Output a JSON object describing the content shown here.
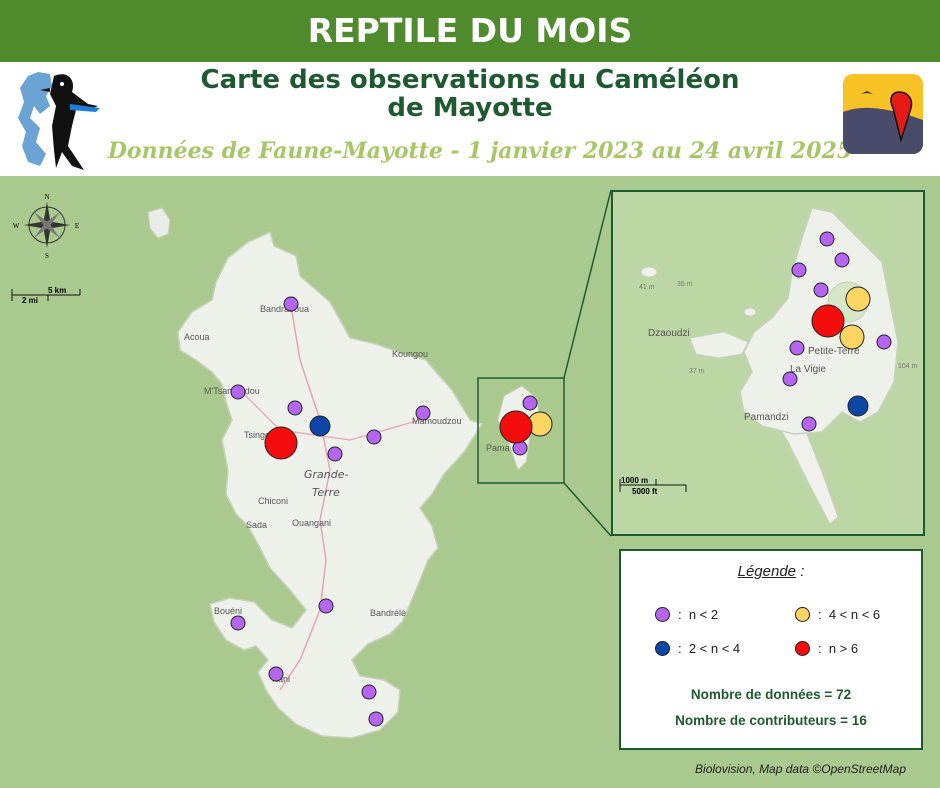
{
  "banner": {
    "text": "REPTILE DU MOIS"
  },
  "header": {
    "title_line1": "Carte des observations du Caméléon",
    "title_line2": "de Mayotte",
    "subtitle": "Données de Faune-Mayotte - 1 janvier 2023 au 24 avril 2025"
  },
  "compass": {
    "n": "N",
    "s": "S",
    "e": "E",
    "w": "W"
  },
  "scale_main": {
    "km": "5 km",
    "mi": "2 mi"
  },
  "scale_inset": {
    "m": "1000 m",
    "ft": "5000 ft"
  },
  "places": {
    "bandraboua": "Bandraboua",
    "acoua": "Acoua",
    "koungou": "Koungou",
    "mtsamoudou": "M'Tsamoudou",
    "mamoudzou": "Mamoudzou",
    "tsingoni": "Tsingoni",
    "grande_terre_1": "Grande-",
    "grande_terre_2": "Terre",
    "chiconi": "Chiconi",
    "sada": "Sada",
    "ouangani": "Ouangani",
    "boueni": "Bouéni",
    "bandrele": "Bandrélé",
    "kani": "Kani",
    "pamandzi_small": "Pama",
    "dzaoudzi": "Dzaoudzi",
    "petite_terre": "Petite-Terre",
    "la_vigie": "La Vigie",
    "pamandzi": "Pamandzi",
    "elev_41": "41 m",
    "elev_35": "35 m",
    "elev_37": "37 m",
    "elev_104": "104 m"
  },
  "legend": {
    "title": "Légende",
    "colon": " :",
    "items": [
      {
        "label": "n < 2",
        "color": "#b565f0"
      },
      {
        "label": "4 < n < 6",
        "color": "#fcd562"
      },
      {
        "label": "2 < n < 4",
        "color": "#0c47a8"
      },
      {
        "label": "n > 6",
        "color": "#f40d0d"
      }
    ],
    "nb_donnees": "Nombre de données = 72",
    "nb_contributeurs": "Nombre de contributeurs = 16"
  },
  "credit": "Biolovision, Map data ©OpenStreetMap",
  "colors": {
    "purple": "#b565f0",
    "yellow": "#fcd562",
    "blue": "#0c47a8",
    "red": "#f40d0d",
    "dark_green": "#1e5a30",
    "banner_green": "#4f8a2c"
  },
  "icons": [
    "bird-logo-icon",
    "faune-logo-icon",
    "compass-rose-icon"
  ]
}
